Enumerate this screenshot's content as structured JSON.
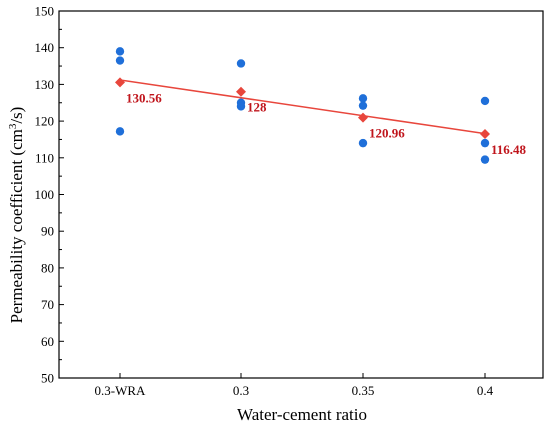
{
  "chart_data": {
    "type": "scatter",
    "xlabel": "Water-cement ratio",
    "ylabel": "Permeability coefficient (cm³/s)",
    "ylabel_parts": {
      "pre": "Permeability coefficient (cm",
      "sup": "3",
      "post": "/s)"
    },
    "categories": [
      "0.3-WRA",
      "0.3",
      "0.35",
      "0.4"
    ],
    "ylim": [
      50,
      150
    ],
    "yticks": [
      50,
      60,
      70,
      80,
      90,
      100,
      110,
      120,
      130,
      140,
      150
    ],
    "grid": false,
    "legend": false,
    "series": [
      {
        "kind": "points",
        "color": "#1f6fd9",
        "points": [
          {
            "x": "0.3-WRA",
            "y": 139
          },
          {
            "x": "0.3-WRA",
            "y": 136.5
          },
          {
            "x": "0.3-WRA",
            "y": 117.2
          },
          {
            "x": "0.3",
            "y": 135.7
          },
          {
            "x": "0.3",
            "y": 125
          },
          {
            "x": "0.3",
            "y": 124
          },
          {
            "x": "0.35",
            "y": 126.2
          },
          {
            "x": "0.35",
            "y": 124.2
          },
          {
            "x": "0.35",
            "y": 114
          },
          {
            "x": "0.4",
            "y": 125.5
          },
          {
            "x": "0.4",
            "y": 114
          },
          {
            "x": "0.4",
            "y": 109.5
          }
        ]
      },
      {
        "kind": "means",
        "color": "#e8463c",
        "values": [
          130.56,
          128,
          120.96,
          116.48
        ],
        "labels": [
          "130.56",
          "128",
          "120.96",
          "116.48"
        ],
        "label_color": "#c0151c"
      },
      {
        "kind": "fit_line",
        "color": "#e8463c",
        "y_start": 131.2,
        "y_end": 116.6
      }
    ]
  }
}
